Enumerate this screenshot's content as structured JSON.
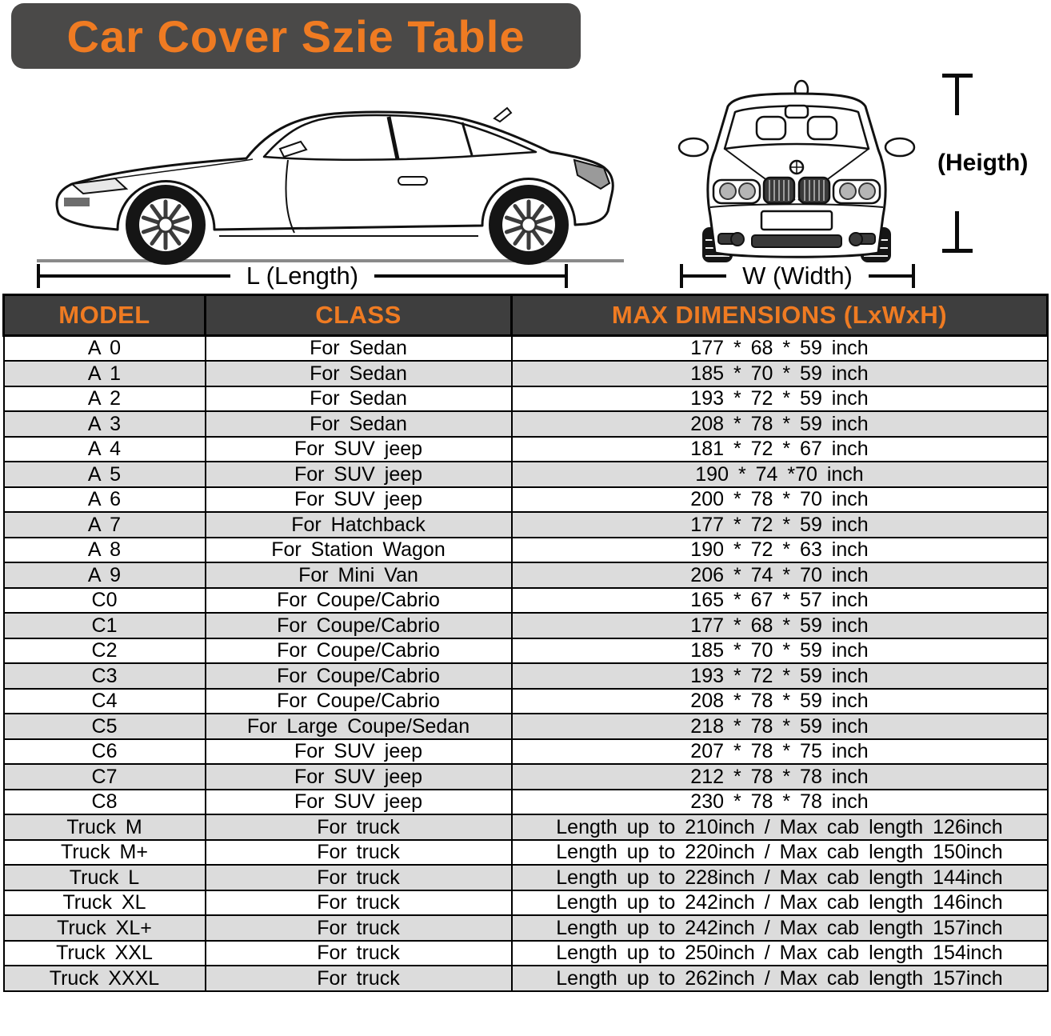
{
  "title": "Car Cover Szie Table",
  "diagram": {
    "length_label": "L (Length)",
    "width_label": "W (Width)",
    "height_label": "(Heigth)",
    "side_car_icon": "car-side-view",
    "front_car_icon": "car-front-view"
  },
  "table": {
    "headers": [
      "MODEL",
      "CLASS",
      "MAX DIMENSIONS (LxWxH)"
    ],
    "rows": [
      {
        "model": "A 0",
        "class": "For Sedan",
        "dimensions": "177 * 68 * 59 inch"
      },
      {
        "model": "A 1",
        "class": "For Sedan",
        "dimensions": "185 * 70 * 59 inch"
      },
      {
        "model": "A 2",
        "class": "For Sedan",
        "dimensions": "193 * 72 * 59 inch"
      },
      {
        "model": "A 3",
        "class": "For Sedan",
        "dimensions": "208 * 78 * 59 inch"
      },
      {
        "model": "A 4",
        "class": "For SUV jeep",
        "dimensions": "181 * 72 * 67 inch"
      },
      {
        "model": "A 5",
        "class": "For SUV jeep",
        "dimensions": "190 * 74  *70 inch"
      },
      {
        "model": "A 6",
        "class": "For SUV jeep",
        "dimensions": "200 * 78 * 70 inch"
      },
      {
        "model": "A 7",
        "class": "For Hatchback",
        "dimensions": "177 * 72 * 59 inch"
      },
      {
        "model": "A 8",
        "class": "For Station Wagon",
        "dimensions": "190 * 72 * 63 inch"
      },
      {
        "model": "A 9",
        "class": "For Mini Van",
        "dimensions": "206 * 74 * 70 inch"
      },
      {
        "model": "C0",
        "class": "For Coupe/Cabrio",
        "dimensions": "165 * 67 * 57 inch"
      },
      {
        "model": "C1",
        "class": "For Coupe/Cabrio",
        "dimensions": "177 * 68 * 59 inch"
      },
      {
        "model": "C2",
        "class": "For Coupe/Cabrio",
        "dimensions": "185 * 70 * 59 inch"
      },
      {
        "model": "C3",
        "class": "For Coupe/Cabrio",
        "dimensions": "193 * 72 * 59 inch"
      },
      {
        "model": "C4",
        "class": "For Coupe/Cabrio",
        "dimensions": "208 * 78 * 59 inch"
      },
      {
        "model": "C5",
        "class": "For Large Coupe/Sedan",
        "dimensions": "218 * 78 * 59 inch"
      },
      {
        "model": "C6",
        "class": "For SUV jeep",
        "dimensions": "207 * 78 * 75 inch"
      },
      {
        "model": "C7",
        "class": "For SUV jeep",
        "dimensions": "212 * 78 * 78 inch"
      },
      {
        "model": "C8",
        "class": "For SUV jeep",
        "dimensions": "230 * 78 * 78 inch"
      },
      {
        "model": "Truck M",
        "class": "For truck",
        "dimensions": "Length up to 210inch / Max cab length 126inch"
      },
      {
        "model": "Truck M+",
        "class": "For truck",
        "dimensions": "Length up to 220inch / Max cab length 150inch"
      },
      {
        "model": "Truck L",
        "class": "For truck",
        "dimensions": "Length up to 228inch / Max cab length 144inch"
      },
      {
        "model": "Truck XL",
        "class": "For truck",
        "dimensions": "Length up to 242inch / Max cab length 146inch"
      },
      {
        "model": "Truck XL+",
        "class": "For truck",
        "dimensions": "Length up to 242inch / Max cab length 157inch"
      },
      {
        "model": "Truck XXL",
        "class": "For truck",
        "dimensions": "Length up to 250inch / Max cab length 154inch"
      },
      {
        "model": "Truck XXXL",
        "class": "For truck",
        "dimensions": "Length up to 262inch / Max cab length 157inch"
      }
    ]
  },
  "colors": {
    "accent_orange": "#EF7B22",
    "banner_bg": "#4A4948",
    "header_bg": "#3E3E3E",
    "row_alt_bg": "#DCDCDC",
    "border_black": "#000000"
  }
}
